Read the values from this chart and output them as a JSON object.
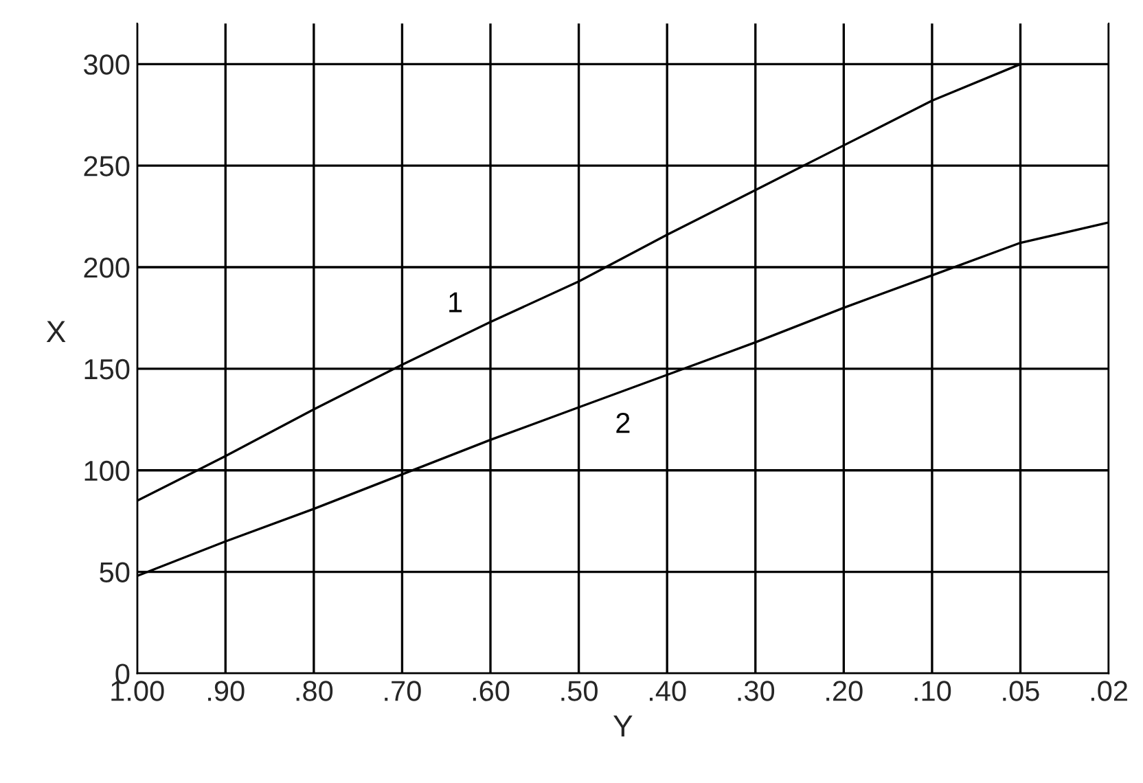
{
  "chart_data": {
    "type": "line",
    "xlabel": "Y",
    "ylabel": "X",
    "categories": [
      "1.00",
      ".90",
      ".80",
      ".70",
      ".60",
      ".50",
      ".40",
      ".30",
      ".20",
      ".10",
      ".05",
      ".02"
    ],
    "series": [
      {
        "name": "1",
        "color": "#000000",
        "values": [
          85,
          107,
          130,
          152,
          173,
          193,
          216,
          238,
          260,
          282,
          300,
          null
        ]
      },
      {
        "name": "2",
        "color": "#000000",
        "values": [
          48,
          65,
          81,
          98,
          115,
          131,
          147,
          163,
          180,
          196,
          212,
          222
        ]
      }
    ],
    "ylim": [
      0,
      320
    ],
    "yticks": [
      0,
      50,
      100,
      150,
      200,
      250,
      300
    ],
    "grid": true,
    "marker": "none",
    "line_style": "solid"
  }
}
